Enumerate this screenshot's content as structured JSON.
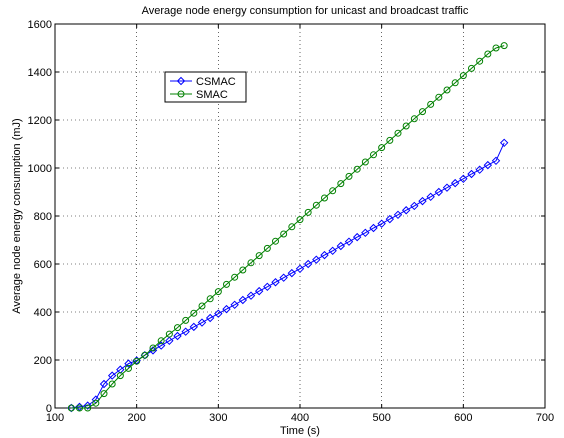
{
  "chart_data": {
    "type": "line",
    "title": "Average node energy consumption for unicast and broadcast traffic",
    "xlabel": "Time (s)",
    "ylabel": "Average node energy consumption (mJ)",
    "xlim": [
      100,
      700
    ],
    "ylim": [
      0,
      1600
    ],
    "xticks": [
      100,
      200,
      300,
      400,
      500,
      600,
      700
    ],
    "yticks": [
      0,
      200,
      400,
      600,
      800,
      1000,
      1200,
      1400,
      1600
    ],
    "grid": true,
    "legend_position": "upper-left",
    "series": [
      {
        "name": "CSMAC",
        "color": "#0000ff",
        "marker": "diamond",
        "x": [
          120,
          130,
          140,
          150,
          160,
          170,
          180,
          190,
          200,
          210,
          220,
          230,
          240,
          250,
          260,
          270,
          280,
          290,
          300,
          310,
          320,
          330,
          340,
          350,
          360,
          370,
          380,
          390,
          400,
          410,
          420,
          430,
          440,
          450,
          460,
          470,
          480,
          490,
          500,
          510,
          520,
          530,
          540,
          550,
          560,
          570,
          580,
          590,
          600,
          610,
          620,
          630,
          640,
          650
        ],
        "y": [
          0,
          5,
          10,
          35,
          100,
          135,
          160,
          185,
          198,
          220,
          240,
          260,
          280,
          300,
          318,
          338,
          356,
          375,
          393,
          412,
          430,
          450,
          468,
          487,
          505,
          524,
          543,
          562,
          580,
          600,
          618,
          637,
          655,
          675,
          693,
          712,
          730,
          750,
          768,
          787,
          805,
          824,
          842,
          862,
          880,
          900,
          918,
          937,
          955,
          975,
          993,
          1012,
          1030,
          1105
        ]
      },
      {
        "name": "SMAC",
        "color": "#008000",
        "marker": "circle",
        "x": [
          120,
          130,
          140,
          150,
          160,
          170,
          180,
          190,
          200,
          210,
          220,
          230,
          240,
          250,
          260,
          270,
          280,
          290,
          300,
          310,
          320,
          330,
          340,
          350,
          360,
          370,
          380,
          390,
          400,
          410,
          420,
          430,
          440,
          450,
          460,
          470,
          480,
          490,
          500,
          510,
          520,
          530,
          540,
          550,
          560,
          570,
          580,
          590,
          600,
          610,
          620,
          630,
          640,
          650
        ],
        "y": [
          0,
          0,
          0,
          20,
          60,
          100,
          135,
          165,
          195,
          220,
          250,
          280,
          308,
          335,
          365,
          395,
          425,
          455,
          485,
          515,
          545,
          575,
          605,
          635,
          665,
          695,
          725,
          755,
          785,
          815,
          845,
          875,
          905,
          935,
          965,
          995,
          1025,
          1055,
          1085,
          1115,
          1145,
          1175,
          1205,
          1235,
          1265,
          1295,
          1325,
          1355,
          1385,
          1415,
          1445,
          1475,
          1500,
          1510
        ]
      }
    ]
  }
}
